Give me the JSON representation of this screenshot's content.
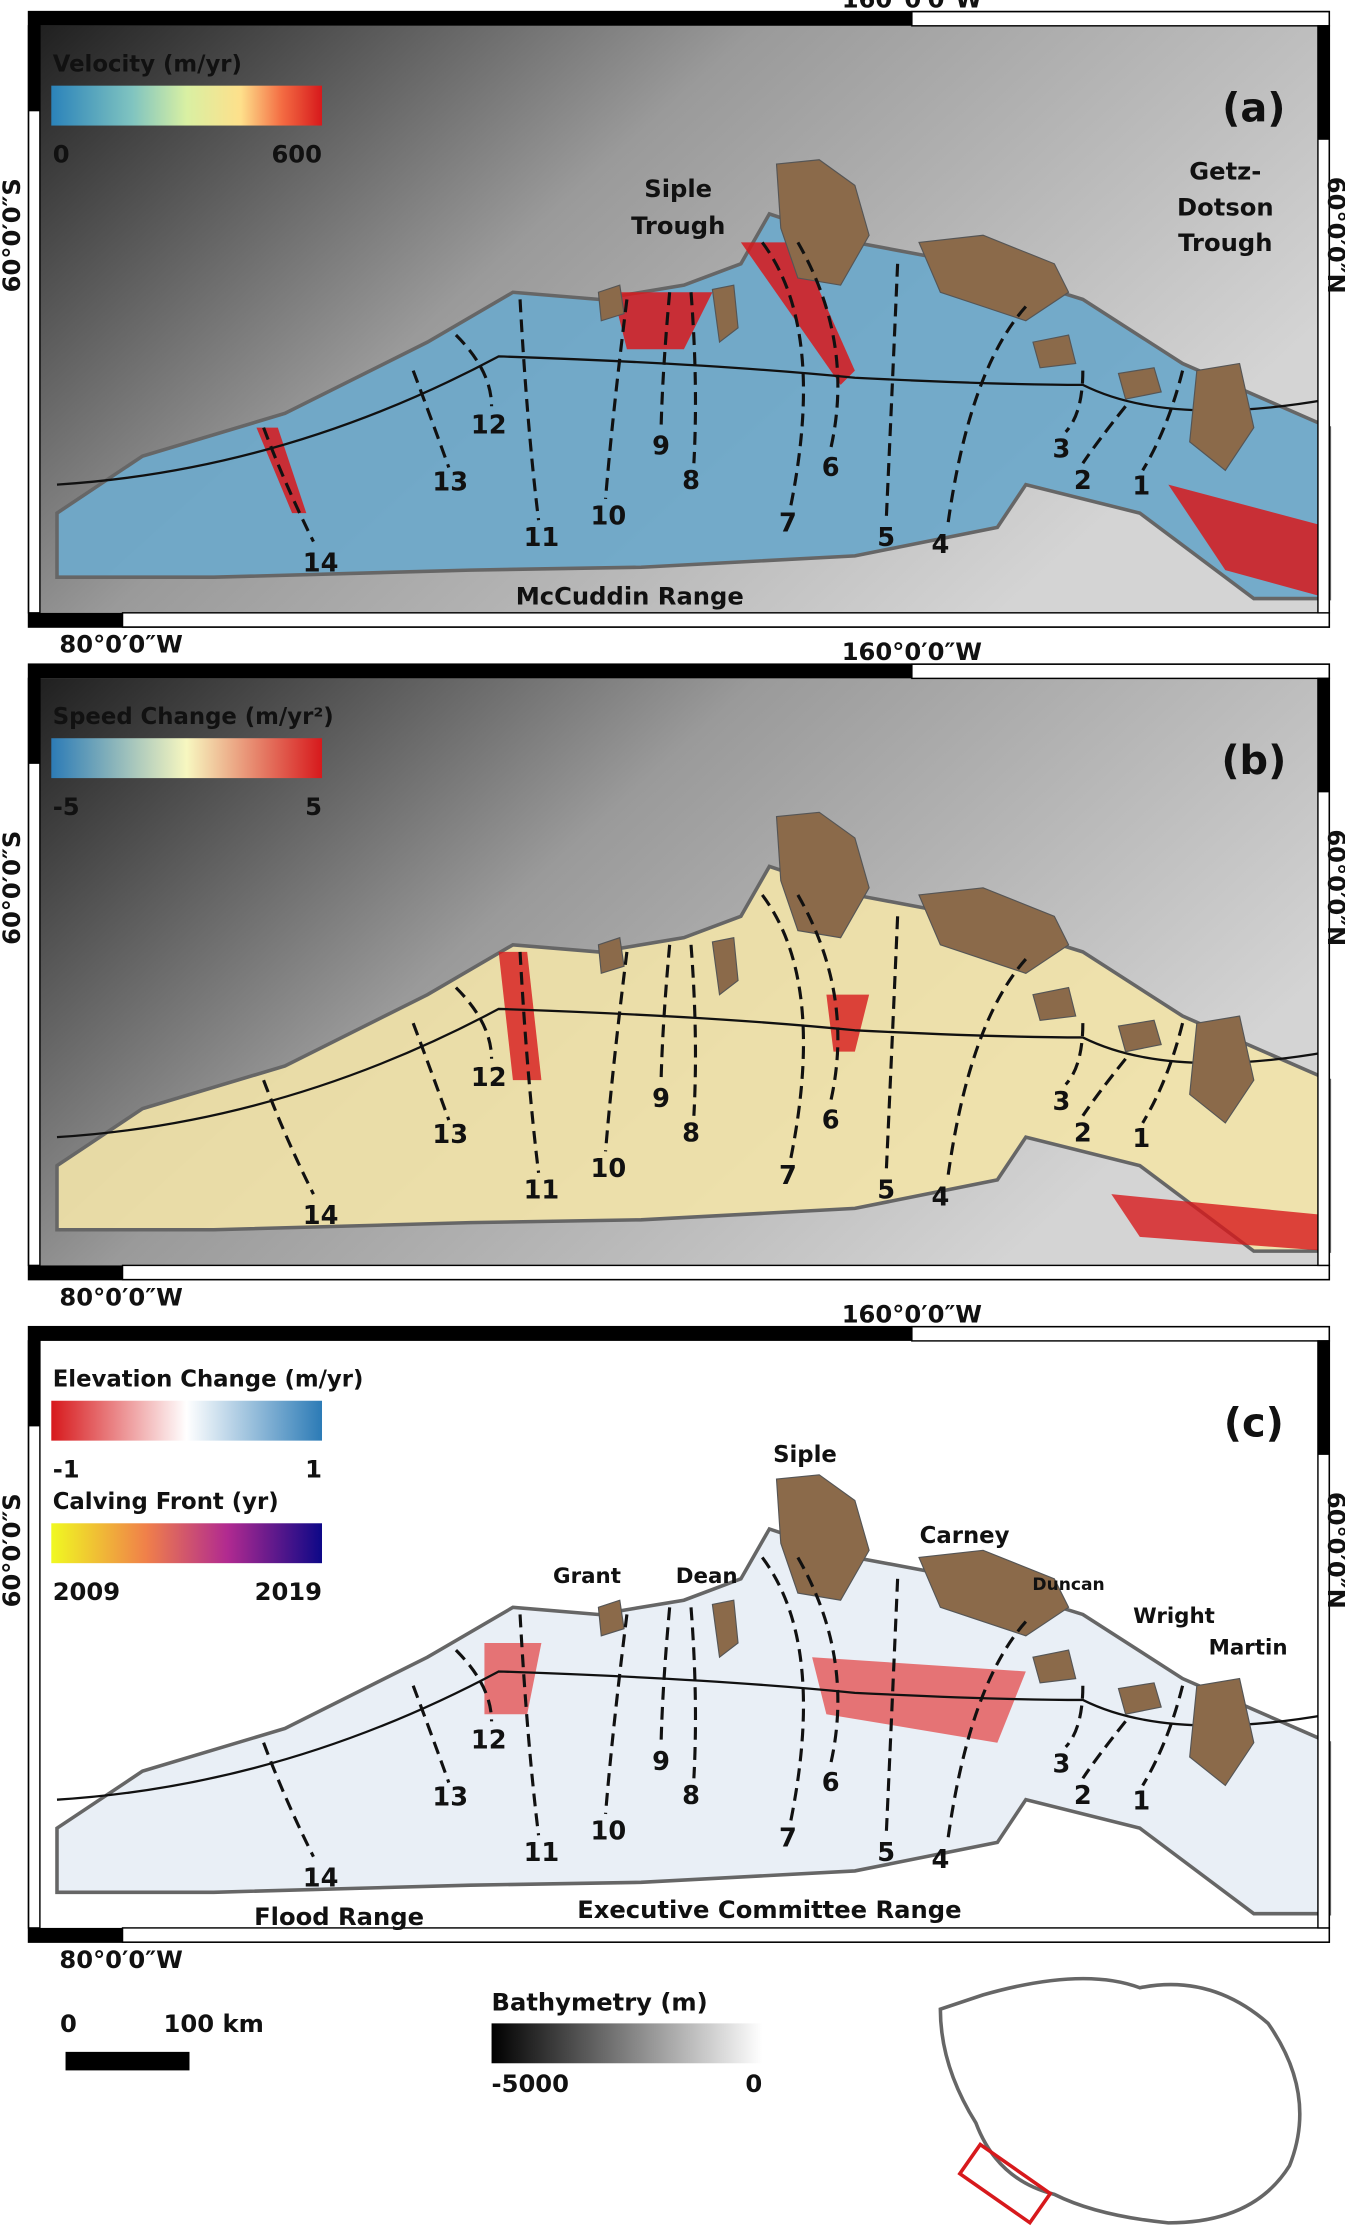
{
  "graticule": {
    "top": "160°0′0″W",
    "bottom": "80°0′0″W",
    "left": "60°0′0″S",
    "right": "60°0′0″N"
  },
  "glacier_labels": [
    "1",
    "2",
    "3",
    "4",
    "5",
    "6",
    "7",
    "8",
    "9",
    "10",
    "11",
    "12",
    "13",
    "14"
  ],
  "panels": [
    {
      "label": "(a)",
      "colorbars": [
        {
          "title": "Velocity (m/yr)",
          "min_label": "0",
          "max_label": "600"
        }
      ],
      "place_names": [
        "Siple",
        "Trough",
        "Getz-",
        "Dotson",
        "Trough",
        "McCuddin Range"
      ]
    },
    {
      "label": "(b)",
      "colorbars": [
        {
          "title": "Speed Change (m/yr²)",
          "min_label": "-5",
          "max_label": "5"
        }
      ],
      "place_names": []
    },
    {
      "label": "(c)",
      "colorbars": [
        {
          "title": "Elevation Change (m/yr)",
          "min_label": "-1",
          "max_label": "1"
        },
        {
          "title": "Calving Front (yr)",
          "min_label": "2009",
          "max_label": "2019"
        }
      ],
      "place_names": [
        "Siple",
        "Carney",
        "Duncan",
        "Grant",
        "Dean",
        "Wright",
        "Martin",
        "Flood Range",
        "Executive Committee Range"
      ]
    }
  ],
  "scale_bar": {
    "start": "0",
    "end": "100 km"
  },
  "bathymetry": {
    "title": "Bathymetry (m)",
    "min_label": "-5000",
    "max_label": "0"
  }
}
